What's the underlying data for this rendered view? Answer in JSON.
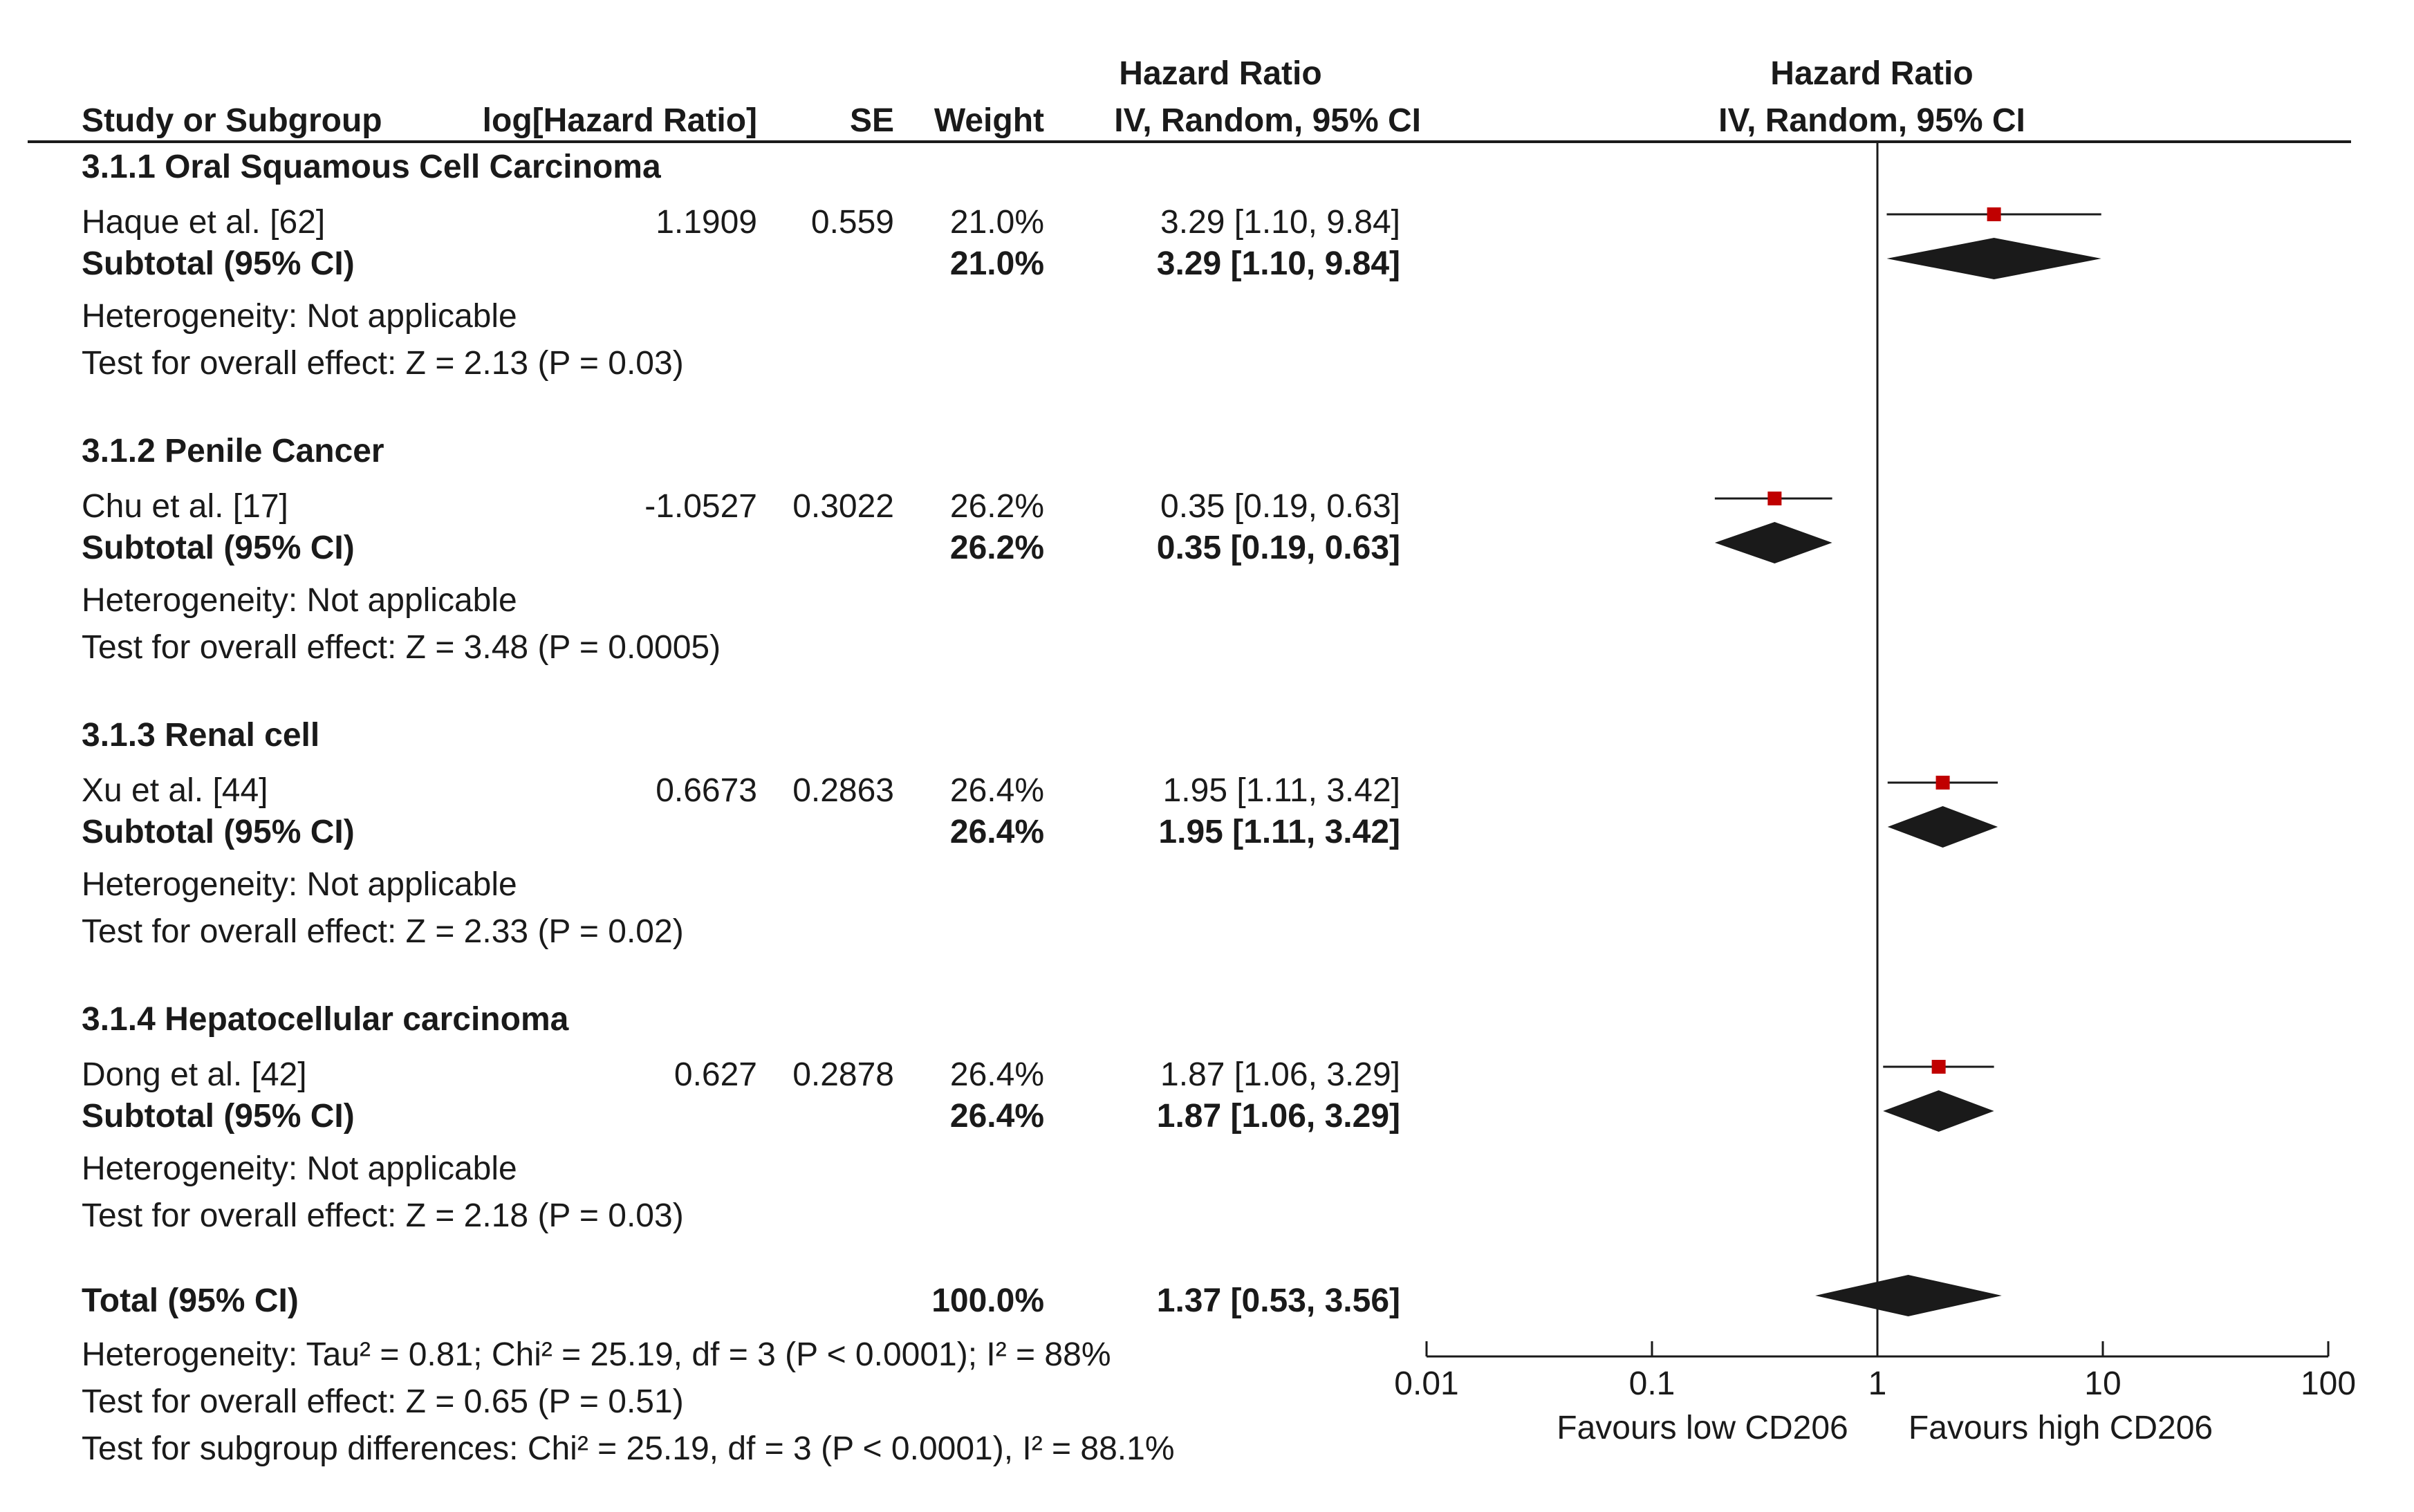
{
  "header": {
    "study_col": "Study or Subgroup",
    "loghr_col": "log[Hazard Ratio]",
    "se_col": "SE",
    "weight_col": "Weight",
    "hr_col_title": "Hazard Ratio",
    "hr_col_sub": "IV, Random, 95% CI",
    "plot_col_title": "Hazard Ratio",
    "plot_col_sub": "IV, Random, 95% CI"
  },
  "colors": {
    "marker": "#c00000",
    "ink": "#1a1a1a"
  },
  "chart_data": {
    "type": "forest",
    "x_scale": "log",
    "xlim": [
      0.01,
      100
    ],
    "null_line": 1,
    "xticks": [
      0.01,
      0.1,
      1,
      10,
      100
    ],
    "xtick_labels": [
      "0.01",
      "0.1",
      "1",
      "10",
      "100"
    ],
    "xlabel_left": "Favours low CD206",
    "xlabel_right": "Favours high CD206",
    "groups": [
      {
        "title": "3.1.1 Oral Squamous Cell Carcinoma",
        "study": {
          "name": "Haque et al. [62]",
          "loghr": "1.1909",
          "se": "0.559",
          "weight": "21.0%",
          "hr_text": "3.29 [1.10, 9.84]",
          "hr": 3.29,
          "lo": 1.1,
          "hi": 9.84
        },
        "subtotal": {
          "label": "Subtotal (95% CI)",
          "weight": "21.0%",
          "hr_text": "3.29 [1.10, 9.84]",
          "hr": 3.29,
          "lo": 1.1,
          "hi": 9.84
        },
        "heterogeneity": "Heterogeneity: Not applicable",
        "overall_effect": "Test for overall effect: Z = 2.13 (P = 0.03)"
      },
      {
        "title": "3.1.2 Penile Cancer",
        "study": {
          "name": "Chu et al. [17]",
          "loghr": "-1.0527",
          "se": "0.3022",
          "weight": "26.2%",
          "hr_text": "0.35 [0.19, 0.63]",
          "hr": 0.35,
          "lo": 0.19,
          "hi": 0.63
        },
        "subtotal": {
          "label": "Subtotal (95% CI)",
          "weight": "26.2%",
          "hr_text": "0.35 [0.19, 0.63]",
          "hr": 0.35,
          "lo": 0.19,
          "hi": 0.63
        },
        "heterogeneity": "Heterogeneity: Not applicable",
        "overall_effect": "Test for overall effect: Z = 3.48 (P = 0.0005)"
      },
      {
        "title": "3.1.3 Renal cell",
        "study": {
          "name": "Xu et al. [44]",
          "loghr": "0.6673",
          "se": "0.2863",
          "weight": "26.4%",
          "hr_text": "1.95 [1.11, 3.42]",
          "hr": 1.95,
          "lo": 1.11,
          "hi": 3.42
        },
        "subtotal": {
          "label": "Subtotal (95% CI)",
          "weight": "26.4%",
          "hr_text": "1.95 [1.11, 3.42]",
          "hr": 1.95,
          "lo": 1.11,
          "hi": 3.42
        },
        "heterogeneity": "Heterogeneity: Not applicable",
        "overall_effect": "Test for overall effect: Z = 2.33 (P = 0.02)"
      },
      {
        "title": "3.1.4 Hepatocellular carcinoma",
        "study": {
          "name": "Dong et al. [42]",
          "loghr": "0.627",
          "se": "0.2878",
          "weight": "26.4%",
          "hr_text": "1.87 [1.06, 3.29]",
          "hr": 1.87,
          "lo": 1.06,
          "hi": 3.29
        },
        "subtotal": {
          "label": "Subtotal (95% CI)",
          "weight": "26.4%",
          "hr_text": "1.87 [1.06, 3.29]",
          "hr": 1.87,
          "lo": 1.06,
          "hi": 3.29
        },
        "heterogeneity": "Heterogeneity: Not applicable",
        "overall_effect": "Test for overall effect: Z = 2.18 (P = 0.03)"
      }
    ],
    "total": {
      "label": "Total (95% CI)",
      "weight": "100.0%",
      "hr_text": "1.37 [0.53, 3.56]",
      "hr": 1.37,
      "lo": 0.53,
      "hi": 3.56,
      "heterogeneity": "Heterogeneity: Tau² = 0.81; Chi² = 25.19, df = 3 (P < 0.0001); I² = 88%",
      "overall_effect": "Test for overall effect: Z = 0.65 (P = 0.51)",
      "subgroup_diff": "Test for subgroup differences: Chi² = 25.19, df = 3 (P < 0.0001), I² = 88.1%"
    }
  }
}
